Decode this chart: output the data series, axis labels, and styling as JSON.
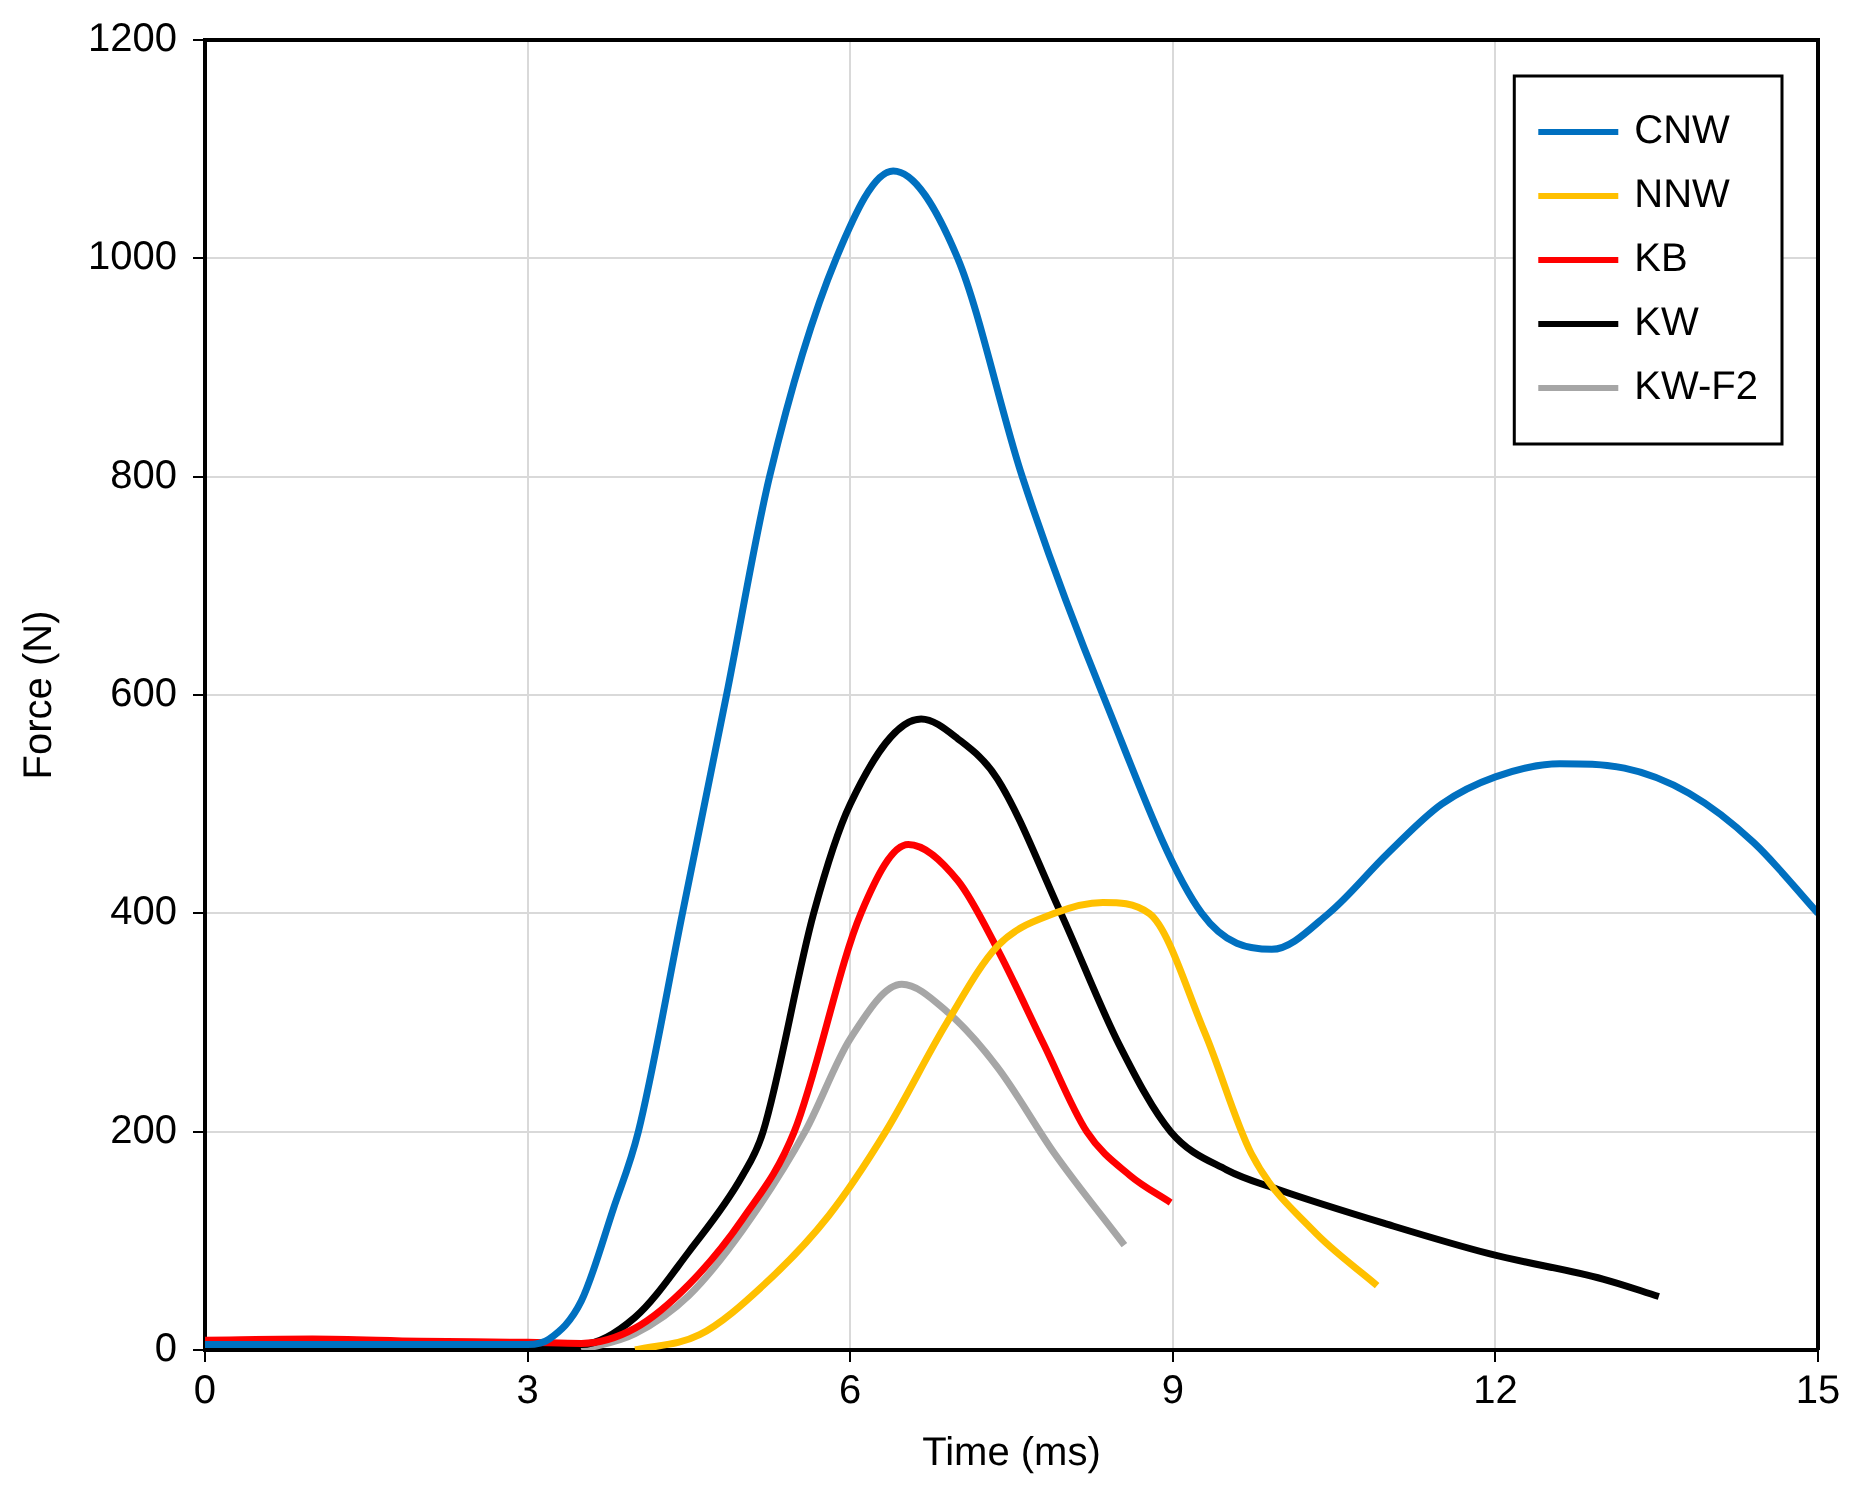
{
  "chart_data": {
    "type": "line",
    "xlabel": "Time (ms)",
    "ylabel": "Force (N)",
    "xlim": [
      0,
      15
    ],
    "xticks": [
      0,
      3,
      6,
      9,
      12,
      15
    ],
    "ylim": [
      0,
      1200
    ],
    "yticks": [
      0,
      200,
      400,
      600,
      800,
      1000,
      1200
    ],
    "grid": true,
    "legend": "top right",
    "marker": "none",
    "line_style": "solid",
    "series": [
      {
        "name": "CNW",
        "color": "#0070c0",
        "x": [
          0,
          1,
          2,
          3,
          3.2,
          3.5,
          3.8,
          4.03,
          4.44,
          4.85,
          5.25,
          5.87,
          6.4,
          7.0,
          7.6,
          8.35,
          9.27,
          9.92,
          10.45,
          11,
          11.5,
          12,
          12.6,
          13.2,
          13.8,
          14.4,
          15
        ],
        "values": [
          5,
          5,
          5,
          5,
          10,
          45,
          130,
          200,
          400,
          600,
          800,
          1000,
          1080,
          1000,
          800,
          600,
          400,
          367,
          400,
          455,
          500,
          525,
          537,
          533,
          510,
          465,
          400
        ]
      },
      {
        "name": "NNW",
        "color": "#ffc000",
        "x": [
          4.0,
          4.6,
          5.2,
          5.8,
          6.33,
          6.9,
          7.37,
          7.9,
          8.35,
          8.78,
          9.3,
          9.73,
          10.3,
          10.9
        ],
        "values": [
          0,
          14,
          60,
          123,
          200,
          300,
          370,
          400,
          410,
          400,
          290,
          180,
          110,
          59
        ]
      },
      {
        "name": "KB",
        "color": "#ff0000",
        "x": [
          0,
          1,
          2,
          3,
          3.5,
          4,
          4.5,
          5,
          5.48,
          6.1,
          6.54,
          7.0,
          7.37,
          7.8,
          8.2,
          8.6,
          8.98
        ],
        "values": [
          9,
          10,
          8,
          7,
          6,
          20,
          60,
          120,
          200,
          400,
          463,
          430,
          367,
          280,
          200,
          160,
          135
        ]
      },
      {
        "name": "KW",
        "color": "#000000",
        "x": [
          3,
          3.5,
          4,
          4.5,
          5,
          5.19,
          5.66,
          6,
          6.66,
          7,
          7.37,
          7.96,
          8.5,
          8.98,
          9.5,
          9.98,
          11,
          11.95,
          13,
          13.52
        ],
        "values": [
          5,
          5,
          30,
          90,
          160,
          200,
          400,
          500,
          578,
          560,
          523,
          400,
          280,
          200,
          165,
          147,
          115,
          88,
          65,
          49
        ]
      },
      {
        "name": "KW-F2",
        "color": "#a6a6a6",
        "x": [
          3.5,
          4,
          4.5,
          5,
          5.58,
          6.0,
          6.48,
          6.9,
          7.37,
          7.9,
          8.55
        ],
        "values": [
          0,
          15,
          50,
          110,
          200,
          285,
          335,
          310,
          259,
          180,
          96
        ]
      }
    ]
  }
}
